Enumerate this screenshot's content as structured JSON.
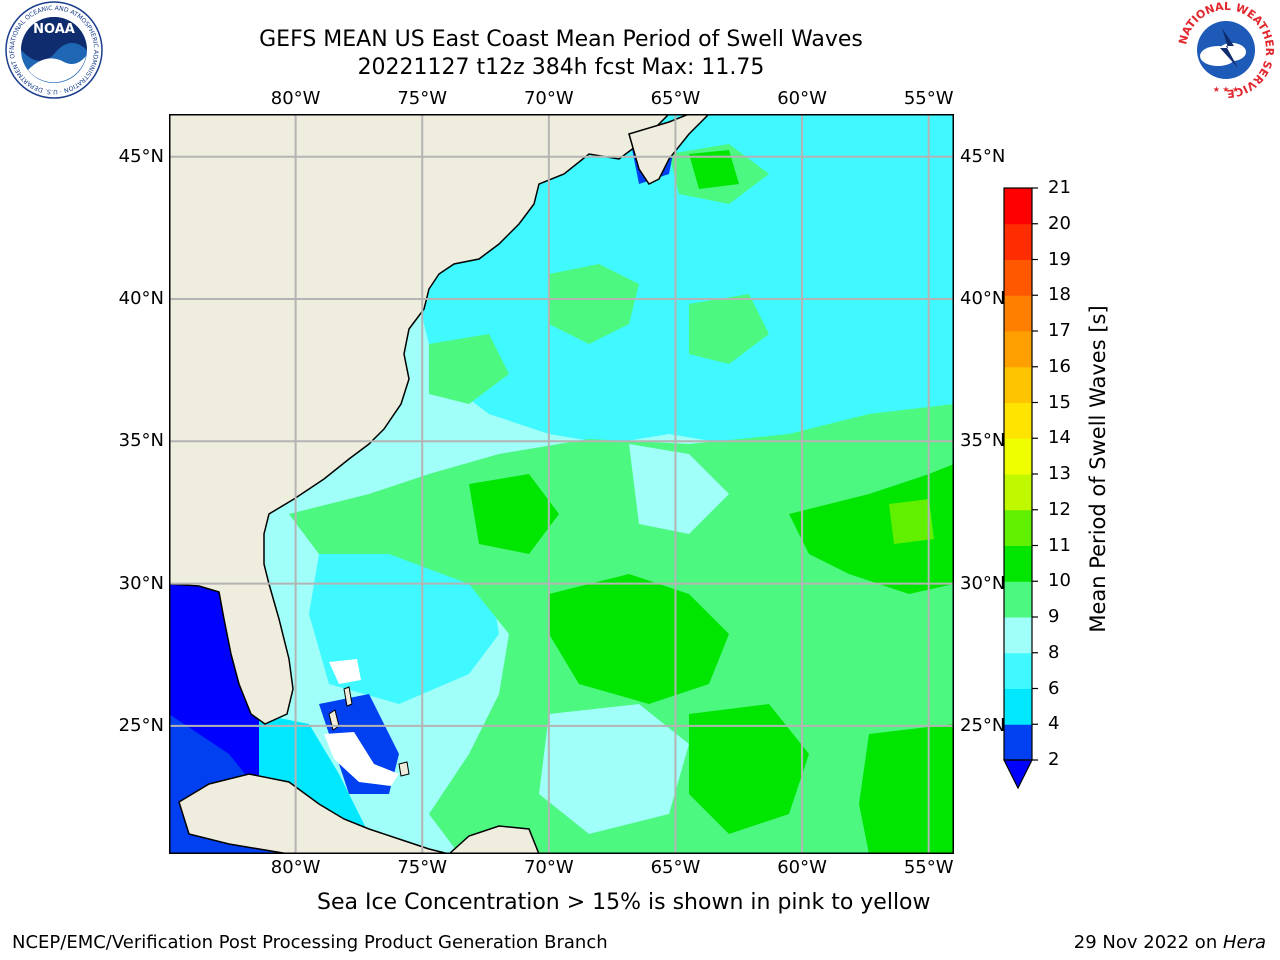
{
  "header": {
    "title": "GEFS MEAN US East Coast Mean Period of Swell Waves",
    "subtitle": "20221127 t12z 384h fcst   Max: 11.75"
  },
  "logos": {
    "left": {
      "text": "NOAA",
      "ring": "NATIONAL OCEANIC AND ATMOSPHERIC ADMINISTRATION · U.S. DEPARTMENT OF COMMERCE"
    },
    "right": {
      "ring": "NATIONAL WEATHER SERVICE"
    }
  },
  "map": {
    "lon_labels": [
      "80°W",
      "75°W",
      "70°W",
      "65°W",
      "60°W",
      "55°W"
    ],
    "lat_labels": [
      "45°N",
      "40°N",
      "35°N",
      "30°N",
      "25°N"
    ],
    "lon_range": [
      -85,
      -54
    ],
    "lat_range": [
      20.5,
      46.5
    ],
    "colors": {
      "land": "#efedde",
      "grid": "#b4b4b4",
      "coast": "#000000"
    }
  },
  "colorbar": {
    "label": "Mean Period of Swell Waves [s]",
    "ticks": [
      "2",
      "4",
      "6",
      "8",
      "9",
      "10",
      "11",
      "12",
      "13",
      "14",
      "15",
      "16",
      "17",
      "18",
      "19",
      "20",
      "21"
    ],
    "colors": [
      "#0040f0",
      "#00e8ff",
      "#40f8ff",
      "#a0fff8",
      "#4cf880",
      "#00e600",
      "#60f000",
      "#c0f800",
      "#f0ff00",
      "#ffe400",
      "#ffc400",
      "#ffa000",
      "#ff8000",
      "#ff5800",
      "#ff2c00",
      "#ff0000"
    ],
    "under_color": "#0000ff"
  },
  "caption": "Sea Ice Concentration > 15% is shown in pink to yellow",
  "footer": {
    "left": "NCEP/EMC/Verification Post Processing Product Generation Branch",
    "date": "29 Nov 2022 on ",
    "host": "Hera"
  }
}
